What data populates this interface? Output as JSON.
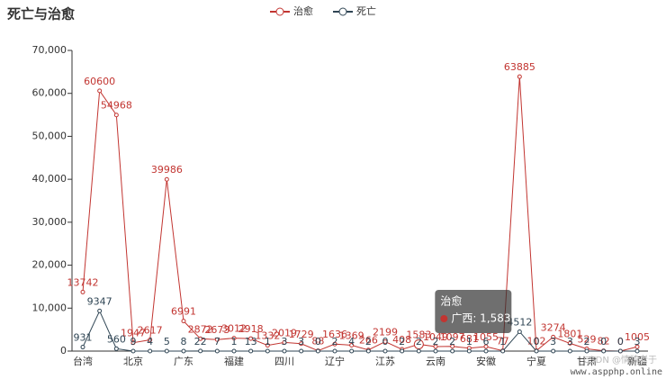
{
  "chart_data": {
    "type": "line",
    "title": "死亡与治愈",
    "categories": [
      "台湾",
      null,
      null,
      "北京",
      null,
      null,
      "广东",
      null,
      null,
      "福建",
      null,
      null,
      "四川",
      null,
      null,
      "辽宁",
      null,
      null,
      "江苏",
      null,
      "广西",
      "云南",
      null,
      null,
      "安徽",
      null,
      null,
      "宁夏",
      null,
      null,
      "甘肃",
      null,
      null,
      "新疆"
    ],
    "series": [
      {
        "name": "治愈",
        "color": "#c23531",
        "values": [
          13742,
          60600,
          54968,
          1947,
          2617,
          39986,
          6991,
          2872,
          2673,
          3012,
          2918,
          1332,
          2019,
          1729,
          88,
          1636,
          1369,
          266,
          2199,
          408,
          1583,
          1049,
          1097,
          681,
          1055,
          77,
          63885,
          102,
          3274,
          1801,
          529,
          82,
          0,
          1005
        ]
      },
      {
        "name": "死亡",
        "color": "#2f4554",
        "values": [
          931,
          9347,
          560,
          9,
          4,
          5,
          8,
          22,
          7,
          1,
          13,
          1,
          3,
          3,
          0,
          2,
          4,
          2,
          0,
          2,
          2,
          2,
          2,
          1,
          6,
          1,
          4512,
          0,
          3,
          3,
          2,
          0,
          0,
          3
        ]
      }
    ],
    "ylim": [
      0,
      70000
    ],
    "yticks": [
      0,
      {
        "value": 10000,
        "label": "10,000"
      },
      {
        "value": 20000,
        "label": "20,000"
      },
      {
        "value": 30000,
        "label": "30,000"
      },
      {
        "value": 40000,
        "label": "40,000"
      },
      {
        "value": 50000,
        "label": "50,000"
      },
      {
        "value": 60000,
        "label": "60,000"
      },
      {
        "value": 70000,
        "label": "70,000"
      }
    ],
    "grid": false,
    "legend_position": "top",
    "tooltip": {
      "title": "治愈",
      "text": "广西: 1,583",
      "index": 20
    },
    "watermarks": [
      "CSDN @情猿老于",
      "www.aspphp.online"
    ]
  }
}
